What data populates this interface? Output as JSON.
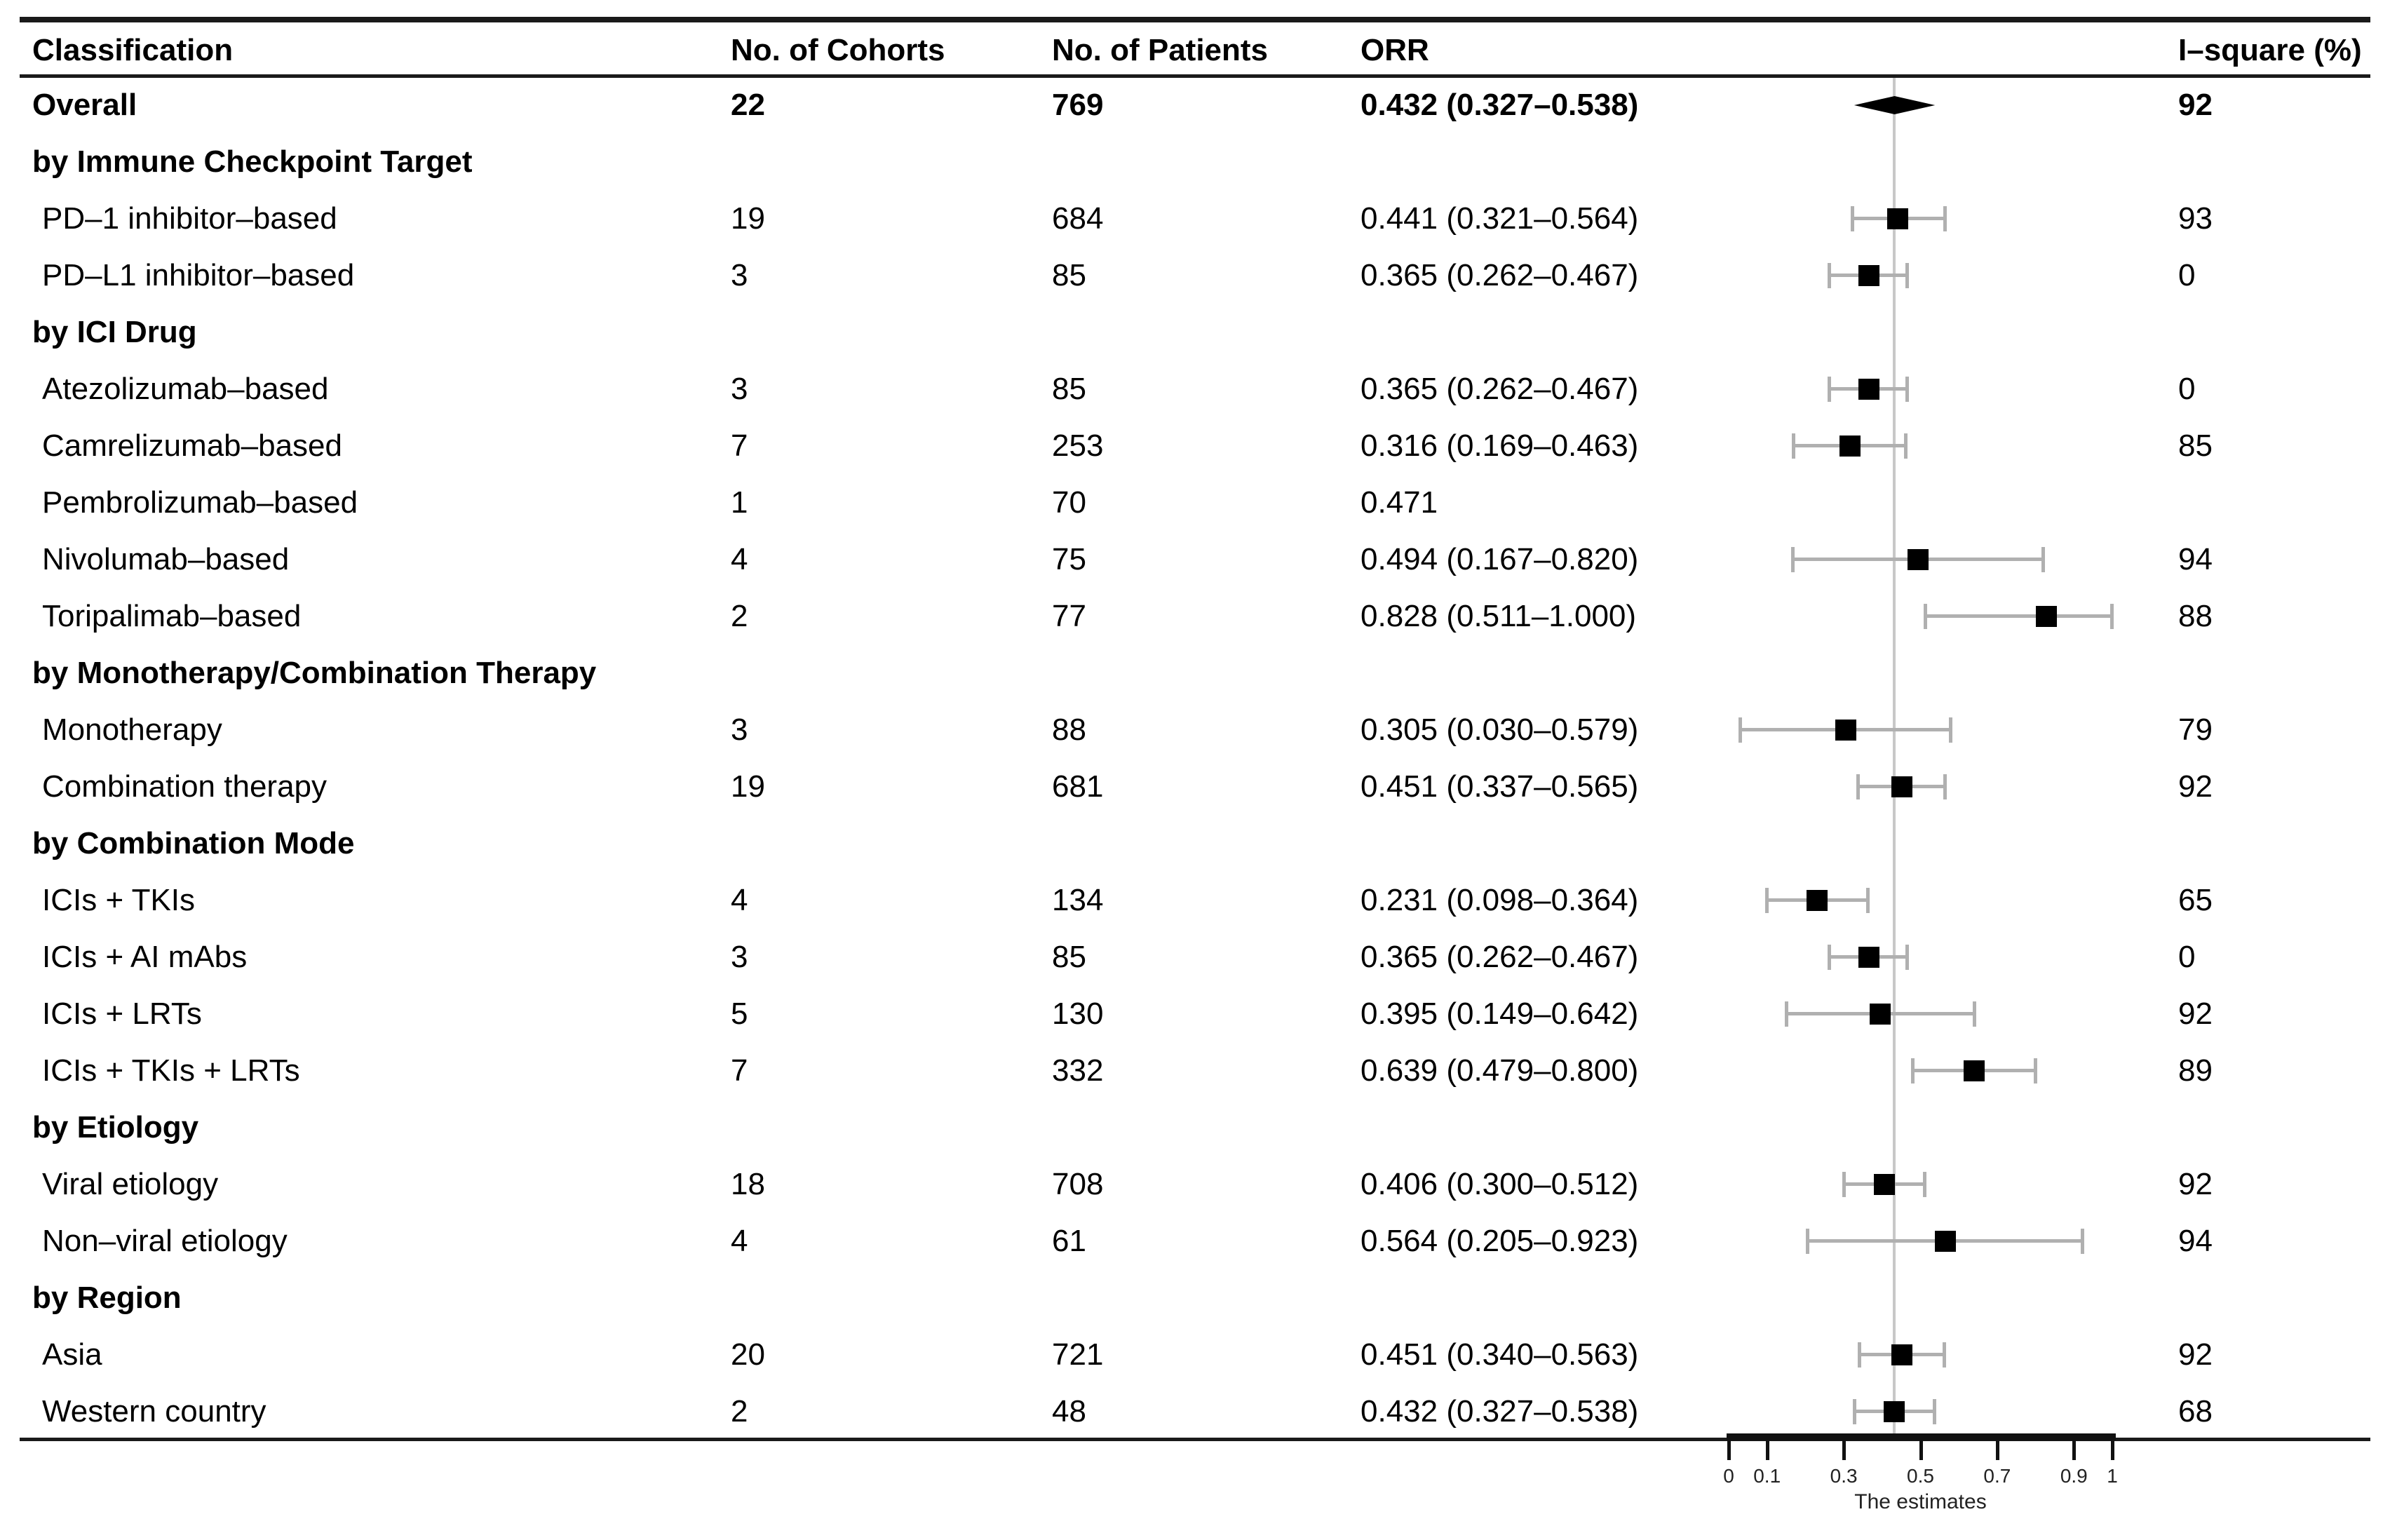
{
  "table": {
    "headers": {
      "classification": "Classification",
      "cohorts": "No. of Cohorts",
      "patients": "No. of Patients",
      "orr": "ORR",
      "i_square": "I–square (%)"
    }
  },
  "chart_data": {
    "type": "scatter",
    "variant": "forest-plot",
    "title": "",
    "xlabel": "The estimates",
    "xlim": [
      0,
      1
    ],
    "x_ticks": [
      0,
      0.1,
      0.3,
      0.5,
      0.7,
      0.9,
      1
    ],
    "x_tick_labels": [
      "0",
      "0.1",
      "0.3",
      "0.5",
      "0.7",
      "0.9",
      "1"
    ],
    "reference_line": 0.432,
    "grid": false,
    "rows": [
      {
        "type": "overall",
        "label": "Overall",
        "cohorts": "22",
        "patients": "769",
        "orr": "0.432 (0.327–0.538)",
        "i_square": "92",
        "est": 0.432,
        "lo": 0.327,
        "hi": 0.538
      },
      {
        "type": "group",
        "label": "by Immune Checkpoint Target",
        "cohorts": "",
        "patients": "",
        "orr": "",
        "i_square": "",
        "est": null,
        "lo": null,
        "hi": null
      },
      {
        "type": "item",
        "label": "PD–1 inhibitor–based",
        "cohorts": "19",
        "patients": "684",
        "orr": "0.441 (0.321–0.564)",
        "i_square": "93",
        "est": 0.441,
        "lo": 0.321,
        "hi": 0.564
      },
      {
        "type": "item",
        "label": "PD–L1 inhibitor–based",
        "cohorts": "3",
        "patients": "85",
        "orr": "0.365 (0.262–0.467)",
        "i_square": "0",
        "est": 0.365,
        "lo": 0.262,
        "hi": 0.467
      },
      {
        "type": "group",
        "label": "by ICI Drug",
        "cohorts": "",
        "patients": "",
        "orr": "",
        "i_square": "",
        "est": null,
        "lo": null,
        "hi": null
      },
      {
        "type": "item",
        "label": "Atezolizumab–based",
        "cohorts": "3",
        "patients": "85",
        "orr": "0.365 (0.262–0.467)",
        "i_square": "0",
        "est": 0.365,
        "lo": 0.262,
        "hi": 0.467
      },
      {
        "type": "item",
        "label": "Camrelizumab–based",
        "cohorts": "7",
        "patients": "253",
        "orr": "0.316 (0.169–0.463)",
        "i_square": "85",
        "est": 0.316,
        "lo": 0.169,
        "hi": 0.463
      },
      {
        "type": "item",
        "label": "Pembrolizumab–based",
        "cohorts": "1",
        "patients": "70",
        "orr": "0.471",
        "i_square": "",
        "est": 0.471,
        "lo": null,
        "hi": null
      },
      {
        "type": "item",
        "label": "Nivolumab–based",
        "cohorts": "4",
        "patients": "75",
        "orr": "0.494 (0.167–0.820)",
        "i_square": "94",
        "est": 0.494,
        "lo": 0.167,
        "hi": 0.82
      },
      {
        "type": "item",
        "label": "Toripalimab–based",
        "cohorts": "2",
        "patients": "77",
        "orr": "0.828 (0.511–1.000)",
        "i_square": "88",
        "est": 0.828,
        "lo": 0.511,
        "hi": 1.0
      },
      {
        "type": "group",
        "label": "by Monotherapy/Combination Therapy",
        "cohorts": "",
        "patients": "",
        "orr": "",
        "i_square": "",
        "est": null,
        "lo": null,
        "hi": null
      },
      {
        "type": "item",
        "label": "Monotherapy",
        "cohorts": "3",
        "patients": "88",
        "orr": "0.305 (0.030–0.579)",
        "i_square": "79",
        "est": 0.305,
        "lo": 0.03,
        "hi": 0.579
      },
      {
        "type": "item",
        "label": "Combination therapy",
        "cohorts": "19",
        "patients": "681",
        "orr": "0.451 (0.337–0.565)",
        "i_square": "92",
        "est": 0.451,
        "lo": 0.337,
        "hi": 0.565
      },
      {
        "type": "group",
        "label": "by Combination Mode",
        "cohorts": "",
        "patients": "",
        "orr": "",
        "i_square": "",
        "est": null,
        "lo": null,
        "hi": null
      },
      {
        "type": "item",
        "label": "ICIs + TKIs",
        "cohorts": "4",
        "patients": "134",
        "orr": "0.231 (0.098–0.364)",
        "i_square": "65",
        "est": 0.231,
        "lo": 0.098,
        "hi": 0.364
      },
      {
        "type": "item",
        "label": "ICIs + AI mAbs",
        "cohorts": "3",
        "patients": "85",
        "orr": "0.365 (0.262–0.467)",
        "i_square": "0",
        "est": 0.365,
        "lo": 0.262,
        "hi": 0.467
      },
      {
        "type": "item",
        "label": "ICIs + LRTs",
        "cohorts": "5",
        "patients": "130",
        "orr": "0.395 (0.149–0.642)",
        "i_square": "92",
        "est": 0.395,
        "lo": 0.149,
        "hi": 0.642
      },
      {
        "type": "item",
        "label": "ICIs + TKIs + LRTs",
        "cohorts": "7",
        "patients": "332",
        "orr": "0.639 (0.479–0.800)",
        "i_square": "89",
        "est": 0.639,
        "lo": 0.479,
        "hi": 0.8
      },
      {
        "type": "group",
        "label": "by Etiology",
        "cohorts": "",
        "patients": "",
        "orr": "",
        "i_square": "",
        "est": null,
        "lo": null,
        "hi": null
      },
      {
        "type": "item",
        "label": "Viral etiology",
        "cohorts": "18",
        "patients": "708",
        "orr": "0.406 (0.300–0.512)",
        "i_square": "92",
        "est": 0.406,
        "lo": 0.3,
        "hi": 0.512
      },
      {
        "type": "item",
        "label": "Non–viral etiology",
        "cohorts": "4",
        "patients": "61",
        "orr": "0.564 (0.205–0.923)",
        "i_square": "94",
        "est": 0.564,
        "lo": 0.205,
        "hi": 0.923
      },
      {
        "type": "group",
        "label": "by Region",
        "cohorts": "",
        "patients": "",
        "orr": "",
        "i_square": "",
        "est": null,
        "lo": null,
        "hi": null
      },
      {
        "type": "item",
        "label": "Asia",
        "cohorts": "20",
        "patients": "721",
        "orr": "0.451 (0.340–0.563)",
        "i_square": "92",
        "est": 0.451,
        "lo": 0.34,
        "hi": 0.563
      },
      {
        "type": "item",
        "label": "Western country",
        "cohorts": "2",
        "patients": "48",
        "orr": "0.432 (0.327–0.538)",
        "i_square": "68",
        "est": 0.432,
        "lo": 0.327,
        "hi": 0.538
      }
    ]
  },
  "colors": {
    "marker": "#000000",
    "ci": "#b0b0b0",
    "reference_line": "#c8c8c8",
    "rule": "#1a1a1a",
    "text": "#000000"
  }
}
